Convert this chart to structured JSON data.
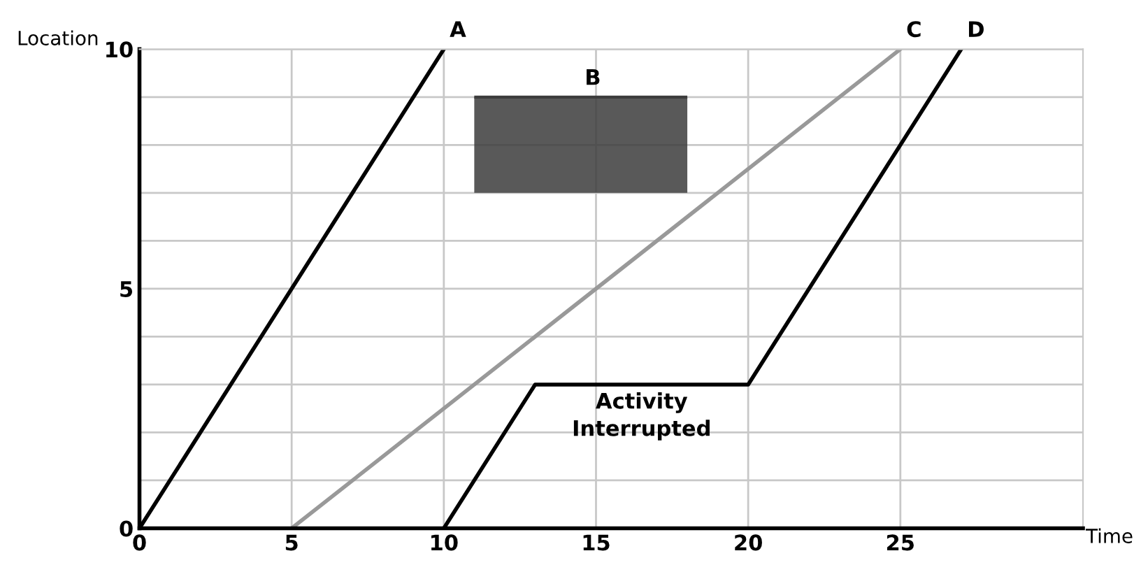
{
  "chart_data": {
    "type": "line",
    "xlabel": "Time",
    "ylabel": "Location",
    "series": [
      {
        "name": "A",
        "color": "#000000",
        "x": [
          0,
          10
        ],
        "values": [
          0,
          10
        ]
      },
      {
        "name": "B",
        "type": "line",
        "color": "#3c3c3c",
        "x": [
          11,
          18
        ],
        "values": [
          9,
          9
        ],
        "lower": [
          7,
          7
        ],
        "upper": [
          9,
          9
        ]
      },
      {
        "name": "C",
        "color": "#999999",
        "x": [
          5,
          25
        ],
        "values": [
          0,
          10
        ]
      },
      {
        "name": "D",
        "color": "#000000",
        "x": [
          10,
          13,
          20,
          27
        ],
        "values": [
          0,
          3,
          3,
          10
        ]
      }
    ],
    "annotations": [
      {
        "text": "Activity\nInterrupted",
        "x": 16.5,
        "y": 3
      }
    ],
    "xlim": [
      0,
      31
    ],
    "ylim": [
      0,
      10
    ],
    "xticks": [
      0,
      5,
      10,
      15,
      20,
      25
    ],
    "yticks": [
      0,
      {
        "value": 1,
        "label": null
      },
      {
        "value": 2,
        "label": null
      },
      {
        "value": 3,
        "label": null
      },
      {
        "value": 4,
        "label": null
      },
      5,
      {
        "value": 6,
        "label": null
      },
      {
        "value": 7,
        "label": null
      },
      {
        "value": 8,
        "label": null
      },
      {
        "value": 9,
        "label": null
      },
      10
    ],
    "grid": true,
    "legend": false,
    "marker": "none",
    "line_style": "solid"
  }
}
